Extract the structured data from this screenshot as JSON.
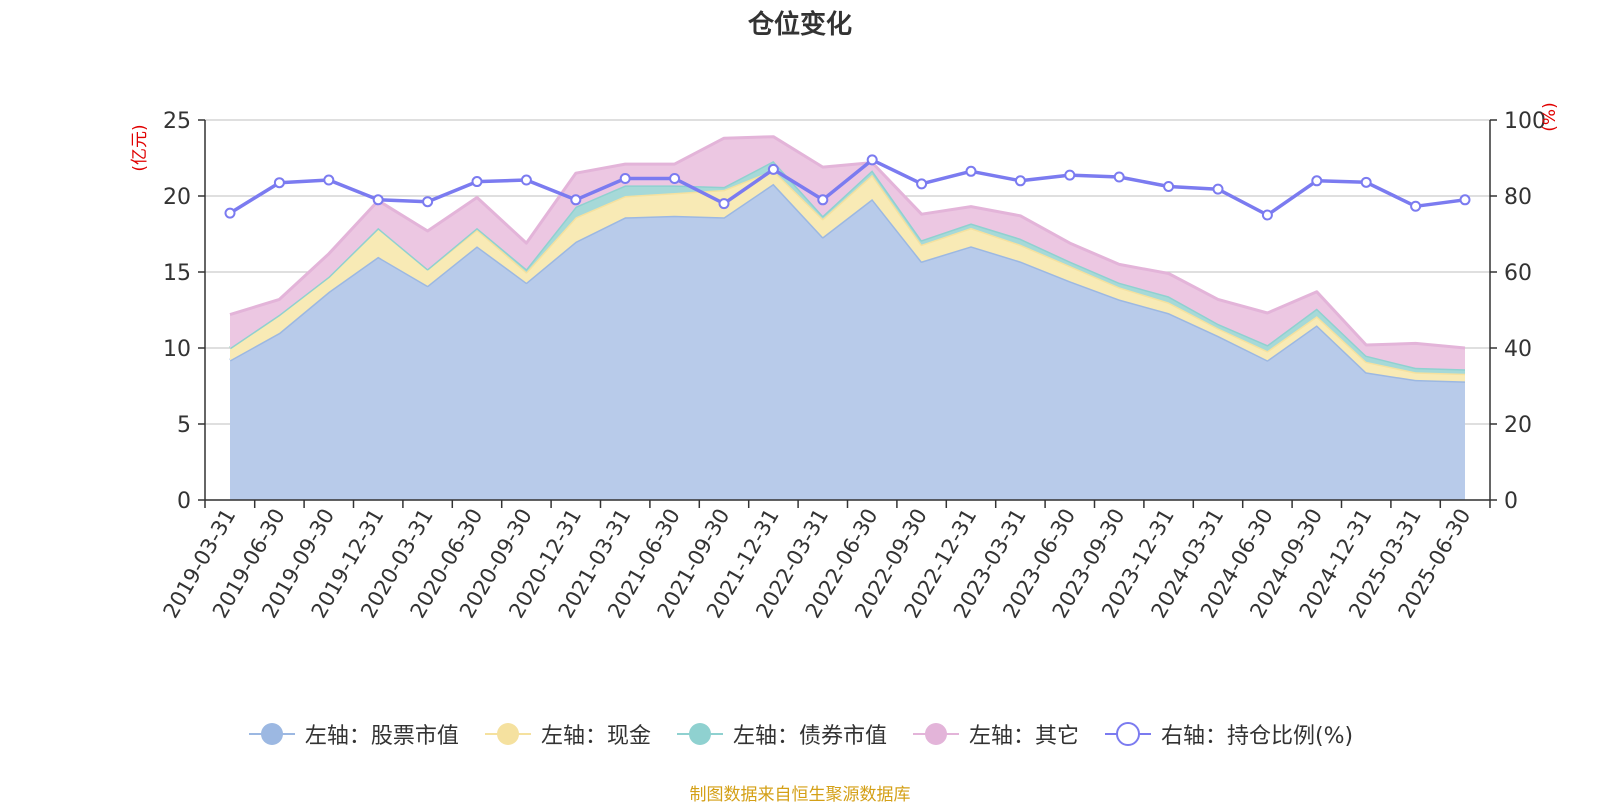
{
  "chart_data": {
    "type": "area",
    "title": "仓位变化",
    "left_axis_label": "(亿元)",
    "right_axis_label": "(%)",
    "left_ylim": [
      0,
      25
    ],
    "right_ylim": [
      0,
      100
    ],
    "left_ticks": [
      "0",
      "5",
      "10",
      "15",
      "20",
      "25"
    ],
    "right_ticks": [
      "0",
      "20",
      "40",
      "60",
      "80",
      "100"
    ],
    "grid": true,
    "legend_position": "bottom",
    "categories": [
      "2019-03-31",
      "2019-06-30",
      "2019-09-30",
      "2019-12-31",
      "2020-03-31",
      "2020-06-30",
      "2020-09-30",
      "2020-12-31",
      "2021-03-31",
      "2021-06-30",
      "2021-09-30",
      "2021-12-31",
      "2022-03-31",
      "2022-06-30",
      "2022-09-30",
      "2022-12-31",
      "2023-03-31",
      "2023-06-30",
      "2023-09-30",
      "2023-12-31",
      "2024-03-31",
      "2024-06-30",
      "2024-09-30",
      "2024-12-31",
      "2025-03-31",
      "2025-06-30"
    ],
    "series": [
      {
        "name": "左轴：股票市值",
        "axis": "left",
        "kind": "stacked-area",
        "color": "#9cb8e2",
        "fill": "#b8cbea",
        "values": [
          9.2,
          11.0,
          13.7,
          16.0,
          14.1,
          16.7,
          14.3,
          17.0,
          18.6,
          18.7,
          18.6,
          20.8,
          17.3,
          19.8,
          15.7,
          16.7,
          15.7,
          14.4,
          13.2,
          12.3,
          10.8,
          9.2,
          11.5,
          8.4,
          7.9,
          7.8
        ]
      },
      {
        "name": "左轴：现金",
        "axis": "left",
        "kind": "stacked-area",
        "color": "#f5e19f",
        "fill": "#f8eab5",
        "values": [
          0.8,
          1.2,
          1.0,
          1.9,
          1.1,
          1.1,
          0.7,
          1.6,
          1.4,
          1.5,
          1.8,
          0.9,
          1.2,
          1.6,
          1.1,
          1.2,
          1.1,
          1.0,
          0.8,
          0.7,
          0.5,
          0.6,
          0.6,
          0.7,
          0.5,
          0.5
        ]
      },
      {
        "name": "左轴：债券市值",
        "axis": "left",
        "kind": "stacked-area",
        "color": "#8fd1d0",
        "fill": "#a6d9d8",
        "values": [
          0,
          0,
          0,
          0,
          0,
          0.1,
          0.2,
          0.7,
          0.7,
          0.5,
          0.2,
          0.6,
          0.2,
          0.3,
          0.3,
          0.3,
          0.4,
          0.3,
          0.3,
          0.4,
          0.3,
          0.4,
          0.5,
          0.4,
          0.3,
          0.3
        ]
      },
      {
        "name": "左轴：其它",
        "axis": "left",
        "kind": "stacked-area",
        "color": "#e3b4d9",
        "fill": "#ecc7e2",
        "values": [
          2.2,
          1.0,
          1.5,
          1.8,
          2.5,
          2.0,
          1.7,
          2.2,
          1.4,
          1.4,
          3.2,
          1.6,
          3.2,
          0.5,
          1.7,
          1.1,
          1.5,
          1.2,
          1.2,
          1.5,
          1.6,
          2.1,
          1.1,
          0.7,
          1.6,
          1.4
        ]
      },
      {
        "name": "右轴：持仓比例(%)",
        "axis": "right",
        "kind": "line",
        "color": "#7b7bf0",
        "values": [
          75.5,
          83.5,
          84.2,
          79.0,
          78.5,
          83.8,
          84.2,
          79.0,
          84.6,
          84.6,
          78.0,
          87.0,
          79.0,
          89.5,
          83.2,
          86.5,
          84.0,
          85.5,
          85.0,
          82.5,
          81.8,
          75.0,
          84.0,
          83.6,
          77.3,
          79.0
        ]
      }
    ]
  },
  "source_note": "制图数据来自恒生聚源数据库"
}
